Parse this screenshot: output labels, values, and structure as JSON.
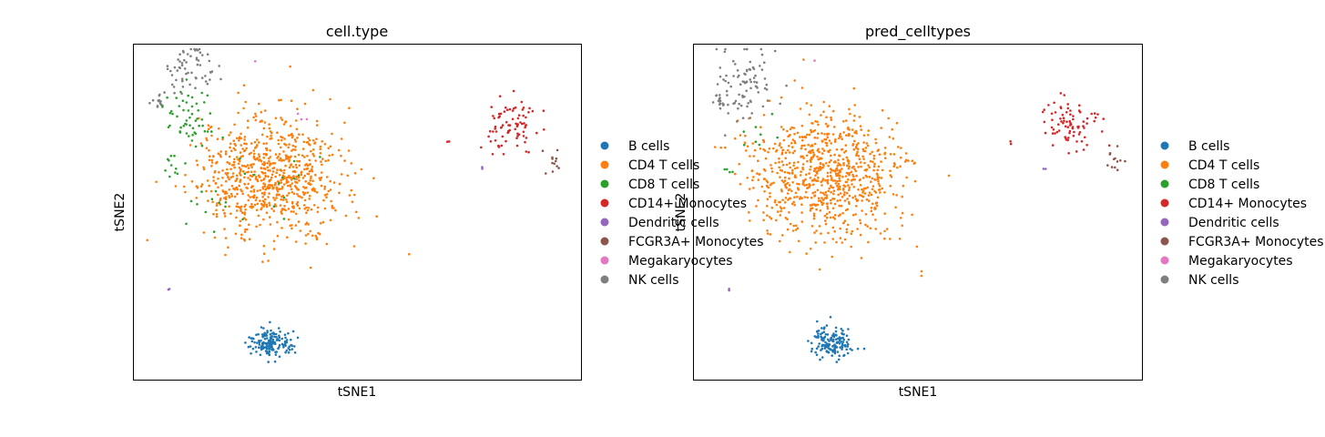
{
  "chart_data": [
    {
      "type": "scatter",
      "title": "cell.type",
      "xlabel": "tSNE1",
      "ylabel": "tSNE2",
      "ticks": "none",
      "legend_position": "right, outside plot",
      "legend": [
        {
          "label": "B cells",
          "color": "#1f77b4"
        },
        {
          "label": "CD4 T cells",
          "color": "#ff7f0e"
        },
        {
          "label": "CD8 T cells",
          "color": "#2ca02c"
        },
        {
          "label": "CD14+ Monocytes",
          "color": "#d62728"
        },
        {
          "label": "Dendritic cells",
          "color": "#9467bd"
        },
        {
          "label": "FCGR3A+ Monocytes",
          "color": "#8c564b"
        },
        {
          "label": "Megakaryocytes",
          "color": "#e377c2"
        },
        {
          "label": "NK cells",
          "color": "#7f7f7f"
        }
      ],
      "clusters": [
        {
          "category": "CD4 T cells",
          "n": 700,
          "cx": 0.31,
          "cy": 0.62,
          "sx": 0.075,
          "sy": 0.09
        },
        {
          "category": "CD4 T cells",
          "n": 60,
          "cx": 0.19,
          "cy": 0.57,
          "sx": 0.035,
          "sy": 0.06
        },
        {
          "category": "CD4 T cells",
          "n": 22,
          "cx": 0.36,
          "cy": 0.44,
          "sx": 0.11,
          "sy": 0.05
        },
        {
          "category": "B cells",
          "n": 150,
          "cx": 0.305,
          "cy": 0.11,
          "sx": 0.025,
          "sy": 0.022
        },
        {
          "category": "CD8 T cells",
          "n": 55,
          "cx": 0.125,
          "cy": 0.78,
          "sx": 0.03,
          "sy": 0.05
        },
        {
          "category": "CD8 T cells",
          "n": 10,
          "cx": 0.085,
          "cy": 0.64,
          "sx": 0.015,
          "sy": 0.02
        },
        {
          "category": "CD8 T cells",
          "n": 12,
          "cx": 0.17,
          "cy": 0.52,
          "sx": 0.03,
          "sy": 0.03
        },
        {
          "category": "CD8 T cells",
          "n": 12,
          "cx": 0.3,
          "cy": 0.6,
          "sx": 0.05,
          "sy": 0.05
        },
        {
          "category": "NK cells",
          "n": 60,
          "cx": 0.13,
          "cy": 0.93,
          "sx": 0.03,
          "sy": 0.035
        },
        {
          "category": "NK cells",
          "n": 14,
          "cx": 0.055,
          "cy": 0.83,
          "sx": 0.008,
          "sy": 0.012
        },
        {
          "category": "CD14+ Monocytes",
          "n": 80,
          "cx": 0.84,
          "cy": 0.76,
          "sx": 0.03,
          "sy": 0.04
        },
        {
          "category": "CD14+ Monocytes",
          "n": 2,
          "cx": 0.705,
          "cy": 0.71,
          "sx": 0.003,
          "sy": 0.003
        },
        {
          "category": "FCGR3A+ Monocytes",
          "n": 12,
          "cx": 0.935,
          "cy": 0.65,
          "sx": 0.012,
          "sy": 0.018
        },
        {
          "category": "Dendritic cells",
          "n": 2,
          "cx": 0.78,
          "cy": 0.63,
          "sx": 0.002,
          "sy": 0.003
        },
        {
          "category": "Dendritic cells",
          "n": 2,
          "cx": 0.08,
          "cy": 0.27,
          "sx": 0.002,
          "sy": 0.002
        },
        {
          "category": "Megakaryocytes",
          "n": 1,
          "cx": 0.27,
          "cy": 0.95,
          "sx": 0.001,
          "sy": 0.001
        },
        {
          "category": "Megakaryocytes",
          "n": 3,
          "cx": 0.37,
          "cy": 0.78,
          "sx": 0.006,
          "sy": 0.004
        }
      ]
    },
    {
      "type": "scatter",
      "title": "pred_celltypes",
      "xlabel": "tSNE1",
      "ylabel": "tSNE2",
      "ticks": "none",
      "legend_position": "right, outside plot",
      "legend": [
        {
          "label": "B cells",
          "color": "#1f77b4"
        },
        {
          "label": "CD4 T cells",
          "color": "#ff7f0e"
        },
        {
          "label": "CD8 T cells",
          "color": "#2ca02c"
        },
        {
          "label": "CD14+ Monocytes",
          "color": "#d62728"
        },
        {
          "label": "Dendritic cells",
          "color": "#9467bd"
        },
        {
          "label": "FCGR3A+ Monocytes",
          "color": "#8c564b"
        },
        {
          "label": "Megakaryocytes",
          "color": "#e377c2"
        },
        {
          "label": "NK cells",
          "color": "#7f7f7f"
        }
      ],
      "clusters": [
        {
          "category": "CD4 T cells",
          "n": 700,
          "cx": 0.31,
          "cy": 0.62,
          "sx": 0.075,
          "sy": 0.09
        },
        {
          "category": "CD4 T cells",
          "n": 60,
          "cx": 0.19,
          "cy": 0.57,
          "sx": 0.035,
          "sy": 0.06
        },
        {
          "category": "CD4 T cells",
          "n": 22,
          "cx": 0.36,
          "cy": 0.44,
          "sx": 0.11,
          "sy": 0.05
        },
        {
          "category": "CD4 T cells",
          "n": 25,
          "cx": 0.125,
          "cy": 0.7,
          "sx": 0.03,
          "sy": 0.04
        },
        {
          "category": "B cells",
          "n": 150,
          "cx": 0.305,
          "cy": 0.11,
          "sx": 0.025,
          "sy": 0.022
        },
        {
          "category": "CD8 T cells",
          "n": 8,
          "cx": 0.15,
          "cy": 0.72,
          "sx": 0.02,
          "sy": 0.03
        },
        {
          "category": "CD8 T cells",
          "n": 4,
          "cx": 0.075,
          "cy": 0.62,
          "sx": 0.008,
          "sy": 0.01
        },
        {
          "category": "NK cells",
          "n": 85,
          "cx": 0.12,
          "cy": 0.88,
          "sx": 0.035,
          "sy": 0.06
        },
        {
          "category": "NK cells",
          "n": 16,
          "cx": 0.055,
          "cy": 0.83,
          "sx": 0.008,
          "sy": 0.012
        },
        {
          "category": "CD14+ Monocytes",
          "n": 80,
          "cx": 0.84,
          "cy": 0.76,
          "sx": 0.03,
          "sy": 0.04
        },
        {
          "category": "CD14+ Monocytes",
          "n": 2,
          "cx": 0.705,
          "cy": 0.71,
          "sx": 0.003,
          "sy": 0.003
        },
        {
          "category": "FCGR3A+ Monocytes",
          "n": 12,
          "cx": 0.935,
          "cy": 0.65,
          "sx": 0.012,
          "sy": 0.018
        },
        {
          "category": "Dendritic cells",
          "n": 2,
          "cx": 0.78,
          "cy": 0.63,
          "sx": 0.002,
          "sy": 0.003
        },
        {
          "category": "Dendritic cells",
          "n": 2,
          "cx": 0.08,
          "cy": 0.27,
          "sx": 0.002,
          "sy": 0.002
        },
        {
          "category": "Megakaryocytes",
          "n": 1,
          "cx": 0.27,
          "cy": 0.95,
          "sx": 0.001,
          "sy": 0.001
        }
      ]
    }
  ]
}
